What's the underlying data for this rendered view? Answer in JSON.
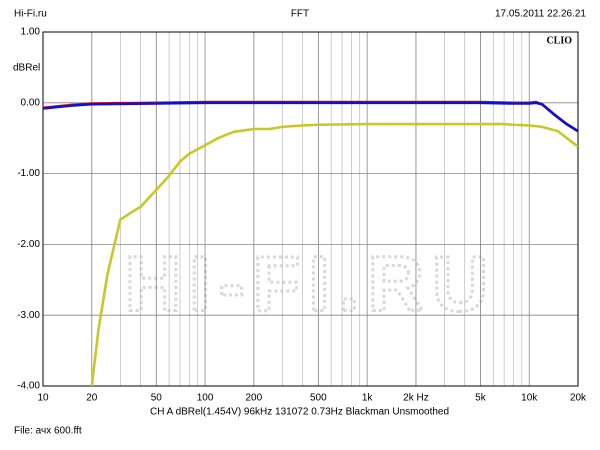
{
  "header": {
    "left": "Hi-Fi.ru",
    "center": "FFT",
    "right": "17.05.2011 22.26.21"
  },
  "footer": {
    "settings": "CH A  dBRel(1.454V)  96kHz  131072  0.73Hz  Blackman  Unsmoothed",
    "file": "File: ачх 600.fft"
  },
  "chart_data": {
    "type": "line",
    "brand": "CLIO",
    "watermark": "HI-FI.RU",
    "y_label": "dBRel",
    "log_x": true,
    "grid": true,
    "xlim": [
      10,
      20000
    ],
    "ylim": [
      -4,
      1
    ],
    "xticks": [
      10,
      20,
      50,
      100,
      200,
      500,
      {
        "value": 1000,
        "label": "1k"
      },
      {
        "value": 2000,
        "label": "2k Hz"
      },
      {
        "value": 5000,
        "label": "5k"
      },
      {
        "value": 10000,
        "label": "10k"
      },
      {
        "value": 20000,
        "label": "20k"
      }
    ],
    "yticks": [
      {
        "value": 1,
        "label": "1.00"
      },
      {
        "value": 0,
        "label": "0.00"
      },
      {
        "value": -1,
        "label": "-1.00"
      },
      {
        "value": -2,
        "label": "-2.00"
      },
      {
        "value": -3,
        "label": "-3.00"
      },
      {
        "value": -4,
        "label": "-4.00"
      }
    ],
    "series": [
      {
        "name": "Channel red",
        "color": "#e01010",
        "x": [
          10,
          15,
          20,
          50,
          100,
          1000,
          5000,
          8000,
          10000,
          11000,
          12000,
          14000,
          17000,
          20000
        ],
        "values": [
          -0.07,
          -0.03,
          -0.01,
          0,
          0.01,
          0.01,
          0.01,
          0,
          0,
          0.01,
          -0.02,
          -0.15,
          -0.3,
          -0.4
        ]
      },
      {
        "name": "Channel blue",
        "color": "#1010d0",
        "x": [
          10,
          15,
          20,
          50,
          100,
          1000,
          5000,
          8000,
          10000,
          11000,
          12000,
          14000,
          17000,
          20000
        ],
        "values": [
          -0.08,
          -0.04,
          -0.02,
          -0.01,
          0,
          0,
          0,
          -0.01,
          -0.01,
          0,
          -0.02,
          -0.15,
          -0.3,
          -0.4
        ]
      },
      {
        "name": "Channel yellow",
        "color": "#c8c828",
        "x": [
          20,
          22,
          25,
          30,
          35,
          40,
          50,
          60,
          70,
          80,
          100,
          120,
          150,
          200,
          250,
          300,
          400,
          500,
          1000,
          2000,
          5000,
          7000,
          8000,
          10000,
          12000,
          15000,
          20000
        ],
        "values": [
          -4.0,
          -3.2,
          -2.42,
          -1.65,
          -1.55,
          -1.47,
          -1.23,
          -1.03,
          -0.83,
          -0.72,
          -0.6,
          -0.5,
          -0.41,
          -0.37,
          -0.37,
          -0.34,
          -0.32,
          -0.31,
          -0.3,
          -0.3,
          -0.3,
          -0.3,
          -0.31,
          -0.32,
          -0.34,
          -0.4,
          -0.62
        ]
      }
    ]
  }
}
